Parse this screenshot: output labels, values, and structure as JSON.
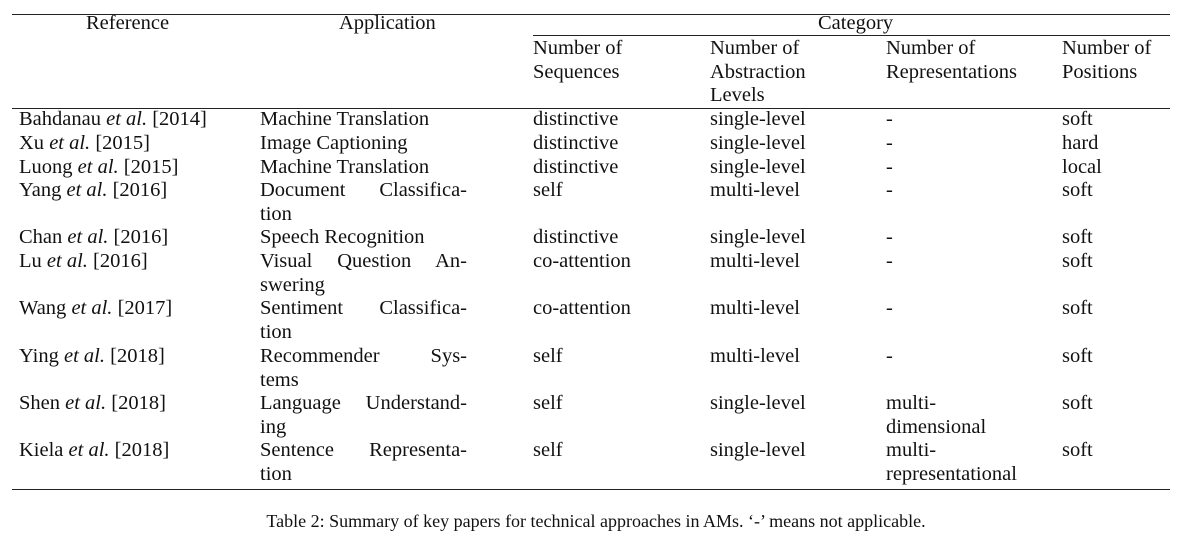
{
  "table": {
    "headers": {
      "reference": "Reference",
      "application": "Application",
      "category": "Category",
      "sub": [
        {
          "line1": "Number of",
          "line2": "Sequences",
          "line3": ""
        },
        {
          "line1": "Number of",
          "line2": "Abstraction",
          "line3": "Levels"
        },
        {
          "line1": "Number of",
          "line2": "Representations",
          "line3": ""
        },
        {
          "line1": "Number of",
          "line2": "Positions",
          "line3": ""
        }
      ]
    },
    "rows": [
      {
        "ref_author": "Bahdanau ",
        "ref_etal": "et al.",
        "ref_year": " [2014]",
        "app1": "Machine Translation",
        "app2": "",
        "sequences": "distinctive",
        "abstraction": "single-level",
        "rep1": "-",
        "rep2": "",
        "positions": "soft"
      },
      {
        "ref_author": "Xu ",
        "ref_etal": "et al.",
        "ref_year": " [2015]",
        "app1": "Image Captioning",
        "app2": "",
        "sequences": "distinctive",
        "abstraction": "single-level",
        "rep1": "-",
        "rep2": "",
        "positions": "hard"
      },
      {
        "ref_author": "Luong ",
        "ref_etal": "et al.",
        "ref_year": " [2015]",
        "app1": "Machine Translation",
        "app2": "",
        "sequences": "distinctive",
        "abstraction": "single-level",
        "rep1": "-",
        "rep2": "",
        "positions": "local"
      },
      {
        "ref_author": "Yang ",
        "ref_etal": "et al.",
        "ref_year": " [2016]",
        "app1": "Document Classifica-",
        "app2": "tion",
        "sequences": "self",
        "abstraction": "multi-level",
        "rep1": "-",
        "rep2": "",
        "positions": "soft"
      },
      {
        "ref_author": "Chan ",
        "ref_etal": "et al.",
        "ref_year": " [2016]",
        "app1": "Speech Recognition",
        "app2": "",
        "sequences": "distinctive",
        "abstraction": "single-level",
        "rep1": "-",
        "rep2": "",
        "positions": "soft"
      },
      {
        "ref_author": "Lu ",
        "ref_etal": "et al.",
        "ref_year": " [2016]",
        "app1": "Visual Question An-",
        "app2": "swering",
        "sequences": "co-attention",
        "abstraction": "multi-level",
        "rep1": "-",
        "rep2": "",
        "positions": "soft"
      },
      {
        "ref_author": "Wang ",
        "ref_etal": "et al.",
        "ref_year": " [2017]",
        "app1": "Sentiment Classifica-",
        "app2": "tion",
        "sequences": "co-attention",
        "abstraction": "multi-level",
        "rep1": "-",
        "rep2": "",
        "positions": "soft"
      },
      {
        "ref_author": "Ying ",
        "ref_etal": "et al.",
        "ref_year": " [2018]",
        "app1": "Recommender Sys-",
        "app2": "tems",
        "sequences": "self",
        "abstraction": "multi-level",
        "rep1": "-",
        "rep2": "",
        "positions": "soft"
      },
      {
        "ref_author": "Shen ",
        "ref_etal": "et al.",
        "ref_year": " [2018]",
        "app1": "Language Understand-",
        "app2": "ing",
        "sequences": "self",
        "abstraction": "single-level",
        "rep1": "multi-",
        "rep2": "dimensional",
        "positions": "soft"
      },
      {
        "ref_author": "Kiela ",
        "ref_etal": "et al.",
        "ref_year": " [2018]",
        "app1": "Sentence Representa-",
        "app2": "tion",
        "sequences": "self",
        "abstraction": "single-level",
        "rep1": "multi-",
        "rep2": "representational",
        "positions": "soft"
      }
    ]
  },
  "caption": "Table 2: Summary of key papers for technical approaches in AMs. ‘-’ means not applicable."
}
